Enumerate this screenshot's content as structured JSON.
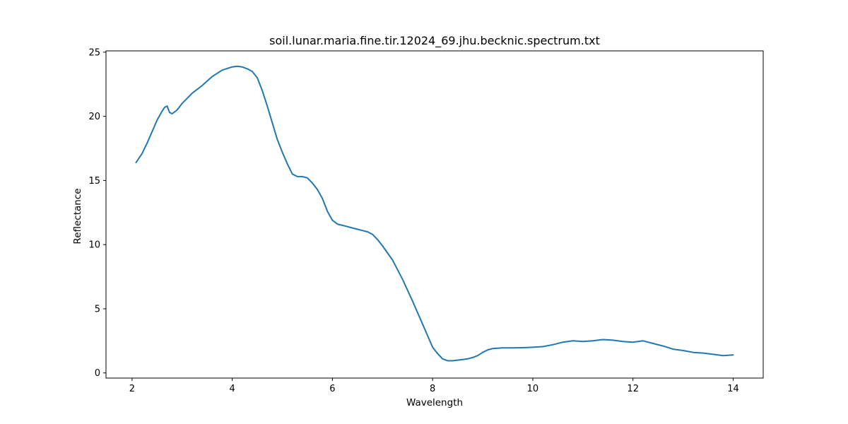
{
  "chart_data": {
    "type": "line",
    "title": "soil.lunar.maria.fine.tir.12024_69.jhu.becknic.spectrum.txt",
    "xlabel": "Wavelength",
    "ylabel": "Reflectance",
    "xlim": [
      1.48,
      14.6
    ],
    "ylim": [
      -0.4,
      25.1
    ],
    "xticks": [
      2,
      4,
      6,
      8,
      10,
      12,
      14
    ],
    "yticks": [
      0,
      5,
      10,
      15,
      20,
      25
    ],
    "grid": false,
    "series": [
      {
        "color": "#1f77b4",
        "x": [
          2.08,
          2.2,
          2.3,
          2.4,
          2.5,
          2.6,
          2.65,
          2.7,
          2.75,
          2.8,
          2.9,
          3.0,
          3.2,
          3.4,
          3.6,
          3.8,
          4.0,
          4.1,
          4.2,
          4.3,
          4.4,
          4.5,
          4.6,
          4.7,
          4.8,
          4.9,
          5.0,
          5.1,
          5.2,
          5.3,
          5.4,
          5.5,
          5.6,
          5.7,
          5.8,
          5.9,
          6.0,
          6.1,
          6.2,
          6.3,
          6.4,
          6.5,
          6.6,
          6.7,
          6.8,
          6.9,
          7.0,
          7.2,
          7.4,
          7.6,
          7.8,
          8.0,
          8.1,
          8.2,
          8.3,
          8.4,
          8.5,
          8.6,
          8.7,
          8.8,
          8.9,
          9.0,
          9.1,
          9.2,
          9.4,
          9.6,
          9.8,
          10.0,
          10.2,
          10.4,
          10.6,
          10.8,
          11.0,
          11.2,
          11.4,
          11.6,
          11.8,
          12.0,
          12.2,
          12.4,
          12.6,
          12.8,
          13.0,
          13.2,
          13.4,
          13.6,
          13.8,
          14.0
        ],
        "y": [
          16.4,
          17.1,
          17.9,
          18.8,
          19.7,
          20.4,
          20.7,
          20.8,
          20.3,
          20.2,
          20.5,
          21.0,
          21.8,
          22.4,
          23.1,
          23.6,
          23.85,
          23.9,
          23.85,
          23.7,
          23.5,
          23.0,
          22.0,
          20.8,
          19.5,
          18.2,
          17.2,
          16.3,
          15.5,
          15.3,
          15.3,
          15.2,
          14.8,
          14.3,
          13.6,
          12.6,
          11.9,
          11.6,
          11.5,
          11.4,
          11.3,
          11.2,
          11.1,
          11.0,
          10.8,
          10.4,
          9.9,
          8.8,
          7.3,
          5.6,
          3.8,
          2.0,
          1.5,
          1.1,
          0.95,
          0.95,
          1.0,
          1.05,
          1.1,
          1.2,
          1.35,
          1.6,
          1.8,
          1.9,
          1.95,
          1.95,
          1.97,
          2.0,
          2.05,
          2.2,
          2.4,
          2.5,
          2.45,
          2.5,
          2.6,
          2.55,
          2.45,
          2.4,
          2.5,
          2.3,
          2.1,
          1.85,
          1.75,
          1.6,
          1.55,
          1.45,
          1.35,
          1.4
        ]
      }
    ]
  }
}
